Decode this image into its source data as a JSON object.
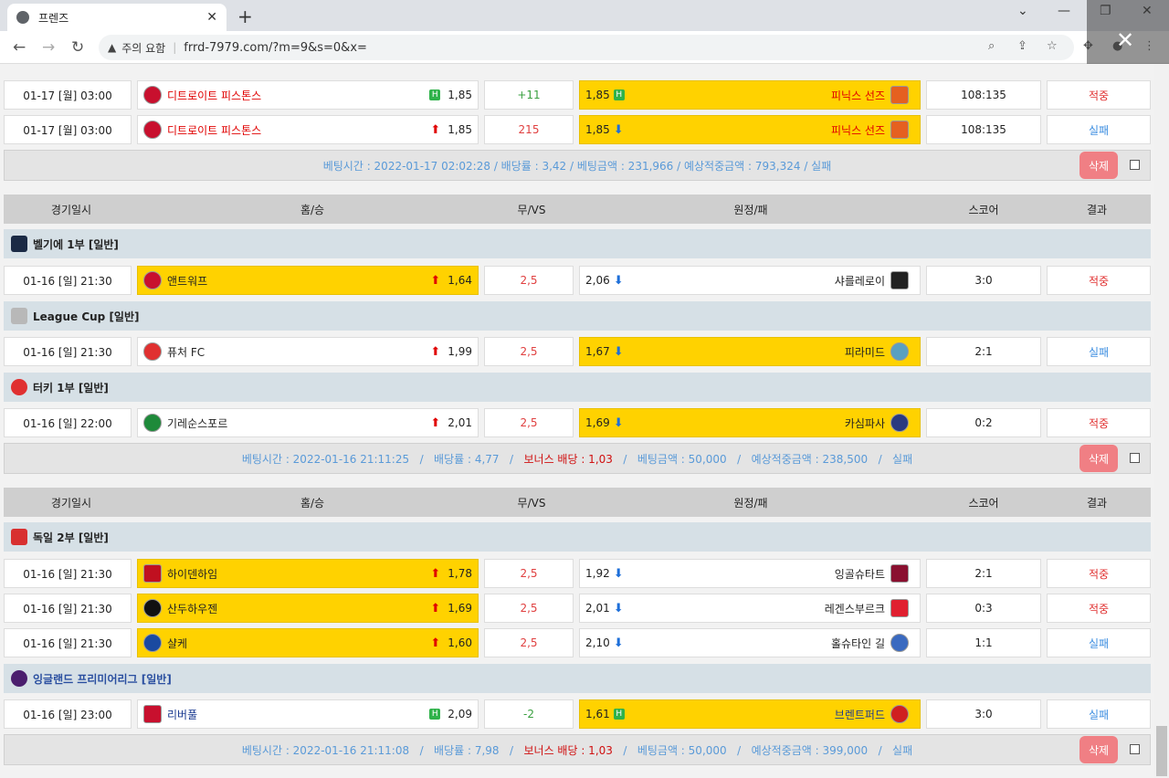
{
  "browser": {
    "tab_title": "프렌즈",
    "tab_close": "✕",
    "new_tab": "+",
    "win_min": "⌄",
    "win_minimize": "—",
    "win_restore": "❐",
    "win_close": "✕",
    "security_warning": "주의 요함",
    "url": "frrd-7979.com/?m=9&s=0&x="
  },
  "colors": {
    "highlight": "#ffd200",
    "league_bg": "#d6e0e6",
    "header_bg": "#cfcfcf",
    "hit": "#e03030",
    "miss": "#3b8de0"
  },
  "columns": {
    "date": "경기일시",
    "home": "홈/승",
    "vs": "무/VS",
    "away": "원정/패",
    "score": "스코어",
    "result": "결과"
  },
  "slip1": {
    "rows": [
      {
        "date": "01-17 [월] 03:00",
        "home": "디트로이트 피스톤스",
        "home_odd": "1,85",
        "vs": "+11",
        "away": "피닉스 선즈",
        "away_odd": "1,85",
        "score": "108:135",
        "result": "적중"
      },
      {
        "date": "01-17 [월] 03:00",
        "home": "디트로이트 피스톤스",
        "home_odd": "1,85",
        "vs": "215",
        "away": "피닉스 선즈",
        "away_odd": "1,85",
        "score": "108:135",
        "result": "실패"
      }
    ],
    "summary": "베팅시간 : 2022-01-17 02:02:28   /   배당률 : 3,42   /   베팅금액 : 231,966   /   예상적중금액 : 793,324   /   실패",
    "delete": "삭제"
  },
  "slip2": {
    "leagues": [
      {
        "name": "벨기에 1부 [일반]"
      },
      {
        "name": "League Cup [일반]"
      },
      {
        "name": "터키 1부 [일반]"
      }
    ],
    "rows": [
      {
        "date": "01-16 [일] 21:30",
        "home": "앤트워프",
        "home_odd": "1,64",
        "vs": "2,5",
        "away": "샤를레로이",
        "away_odd": "2,06",
        "score": "3:0",
        "result": "적중"
      },
      {
        "date": "01-16 [일] 21:30",
        "home": "퓨처 FC",
        "home_odd": "1,99",
        "vs": "2,5",
        "away": "피라미드",
        "away_odd": "1,67",
        "score": "2:1",
        "result": "실패"
      },
      {
        "date": "01-16 [일] 22:00",
        "home": "기레순스포르",
        "home_odd": "2,01",
        "vs": "2,5",
        "away": "카심파사",
        "away_odd": "1,69",
        "score": "0:2",
        "result": "적중"
      }
    ],
    "summary_a": "베팅시간 : 2022-01-16 21:11:25   /   배당률 : 4,77   /   ",
    "summary_bonus": "보너스 배당 : 1,03",
    "summary_b": "   /   베팅금액 : 50,000   /   예상적중금액 : 238,500   /   실패",
    "delete": "삭제"
  },
  "slip3": {
    "leagues": [
      {
        "name": "독일 2부 [일반]"
      },
      {
        "name": "잉글랜드 프리미어리그 [일반]"
      }
    ],
    "rows": [
      {
        "date": "01-16 [일] 21:30",
        "home": "하이덴하임",
        "home_odd": "1,78",
        "vs": "2,5",
        "away": "잉골슈타트",
        "away_odd": "1,92",
        "score": "2:1",
        "result": "적중"
      },
      {
        "date": "01-16 [일] 21:30",
        "home": "산두하우젠",
        "home_odd": "1,69",
        "vs": "2,5",
        "away": "레겐스부르크",
        "away_odd": "2,01",
        "score": "0:3",
        "result": "적중"
      },
      {
        "date": "01-16 [일] 21:30",
        "home": "샬케",
        "home_odd": "1,60",
        "vs": "2,5",
        "away": "홀슈타인 길",
        "away_odd": "2,10",
        "score": "1:1",
        "result": "실패"
      },
      {
        "date": "01-16 [일] 23:00",
        "home": "리버풀",
        "home_odd": "2,09",
        "vs": "-2",
        "away": "브렌트퍼드",
        "away_odd": "1,61",
        "score": "3:0",
        "result": "실패"
      }
    ],
    "summary_a": "베팅시간 : 2022-01-16 21:11:08   /   배당률 : 7,98   /   ",
    "summary_bonus": "보너스 배당 : 1,03",
    "summary_b": "   /   베팅금액 : 50,000   /   예상적중금액 : 399,000   /   실패",
    "delete": "삭제"
  }
}
